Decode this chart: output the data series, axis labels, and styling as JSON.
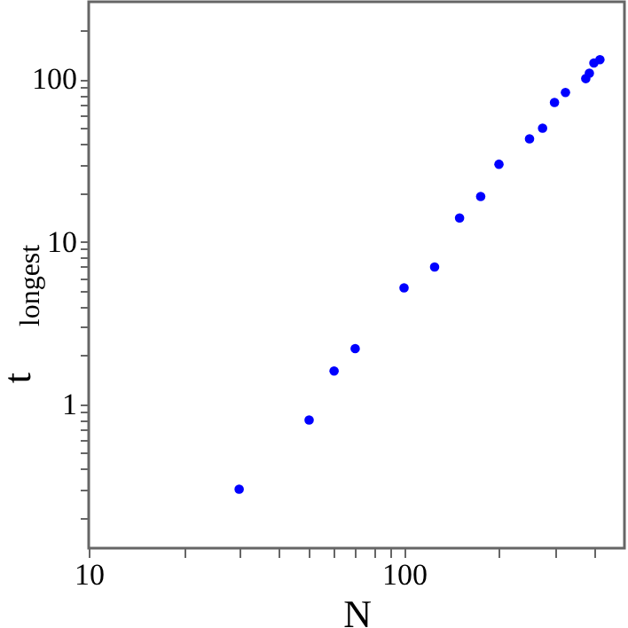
{
  "chart_data": {
    "type": "scatter",
    "xlabel": "N",
    "ylabel": "t$_{longest}$",
    "log": "xy",
    "marker": "circle",
    "grid": false,
    "xlim": [
      10,
      500
    ],
    "ylim": [
      0.13,
      300
    ],
    "xticks": [
      10,
      {
        "value": 20,
        "label": null
      },
      {
        "value": 30,
        "label": null
      },
      {
        "value": 40,
        "label": null
      },
      {
        "value": 50,
        "label": null
      },
      {
        "value": 60,
        "label": null
      },
      {
        "value": 70,
        "label": null
      },
      {
        "value": 80,
        "label": null
      },
      {
        "value": 90,
        "label": null
      },
      100,
      {
        "value": 200,
        "label": null
      },
      {
        "value": 300,
        "label": null
      },
      {
        "value": 400,
        "label": null
      }
    ],
    "yticks": [
      {
        "value": 0.2,
        "label": null
      },
      {
        "value": 0.3,
        "label": null
      },
      {
        "value": 0.4,
        "label": null
      },
      {
        "value": 0.5,
        "label": null
      },
      {
        "value": 0.6,
        "label": null
      },
      {
        "value": 0.7,
        "label": null
      },
      {
        "value": 0.8,
        "label": null
      },
      {
        "value": 0.9,
        "label": null
      },
      1,
      {
        "value": 2,
        "label": null
      },
      {
        "value": 3,
        "label": null
      },
      {
        "value": 4,
        "label": null
      },
      {
        "value": 5,
        "label": null
      },
      {
        "value": 6,
        "label": null
      },
      {
        "value": 7,
        "label": null
      },
      {
        "value": 8,
        "label": null
      },
      {
        "value": 9,
        "label": null
      },
      10,
      {
        "value": 20,
        "label": null
      },
      {
        "value": 30,
        "label": null
      },
      {
        "value": 40,
        "label": null
      },
      {
        "value": 50,
        "label": null
      },
      {
        "value": 60,
        "label": null
      },
      {
        "value": 70,
        "label": null
      },
      {
        "value": 80,
        "label": null
      },
      {
        "value": 90,
        "label": null
      },
      100,
      {
        "value": 200,
        "label": null
      }
    ],
    "series": [
      {
        "color": "#0000ff",
        "x": [
          30,
          50,
          60,
          70,
          100,
          125,
          150,
          175,
          200,
          250,
          275,
          300,
          325,
          377,
          387,
          400,
          418
        ],
        "values": [
          0.3,
          0.8,
          1.6,
          2.2,
          5.2,
          7.0,
          14,
          19,
          30,
          43,
          50,
          72,
          83,
          101,
          109,
          126,
          132
        ]
      }
    ]
  }
}
